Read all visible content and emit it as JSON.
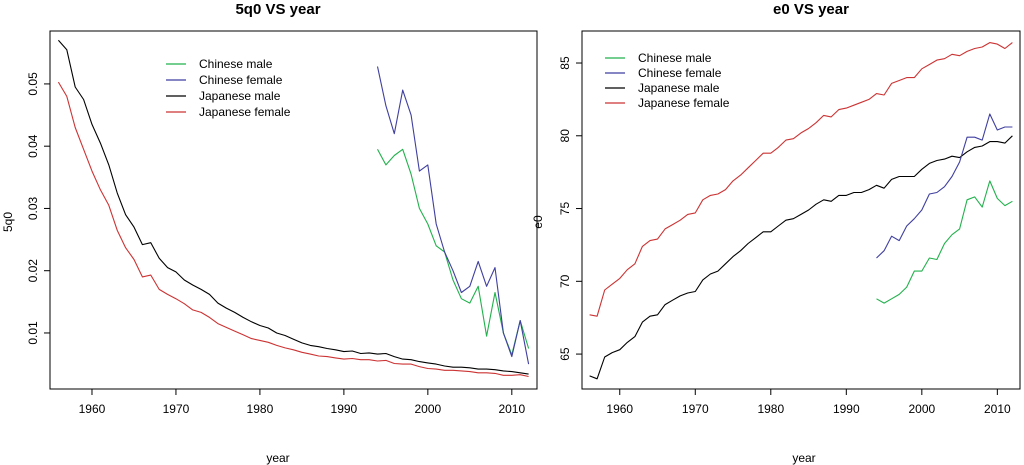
{
  "colors": {
    "chinese_male": "#22b14c",
    "chinese_female": "#3f3fa0",
    "japanese_male": "#000000",
    "japanese_female": "#cc3333"
  },
  "chart_data": [
    {
      "type": "line",
      "title": "5q0 VS year",
      "xlabel": "year",
      "ylabel": "5q0",
      "xlim": [
        1955,
        2013
      ],
      "ylim": [
        0.001,
        0.0585
      ],
      "xticks": [
        1960,
        1970,
        1980,
        1990,
        2000,
        2010
      ],
      "yticks": [
        0.01,
        0.02,
        0.03,
        0.04,
        0.05
      ],
      "xtick_labels": [
        "1960",
        "1970",
        "1980",
        "1990",
        "2000",
        "2010"
      ],
      "ytick_labels": [
        "0.01",
        "0.02",
        "0.03",
        "0.04",
        "0.05"
      ],
      "legend": {
        "position": "top-center",
        "entries": [
          "Chinese male",
          "Chinese female",
          "Japanese male",
          "Japanese female"
        ]
      },
      "series": [
        {
          "name": "Japanese male",
          "color_key": "japanese_male",
          "x": [
            1956,
            1957,
            1958,
            1959,
            1960,
            1961,
            1962,
            1963,
            1964,
            1965,
            1966,
            1967,
            1968,
            1969,
            1970,
            1971,
            1972,
            1973,
            1974,
            1975,
            1976,
            1977,
            1978,
            1979,
            1980,
            1981,
            1982,
            1983,
            1984,
            1985,
            1986,
            1987,
            1988,
            1989,
            1990,
            1991,
            1992,
            1993,
            1994,
            1995,
            1996,
            1997,
            1998,
            1999,
            2000,
            2001,
            2002,
            2003,
            2004,
            2005,
            2006,
            2007,
            2008,
            2009,
            2010,
            2011,
            2012
          ],
          "values": [
            0.057,
            0.0555,
            0.0495,
            0.0475,
            0.0435,
            0.0405,
            0.037,
            0.0325,
            0.029,
            0.027,
            0.0242,
            0.0245,
            0.022,
            0.0205,
            0.0198,
            0.0185,
            0.0177,
            0.017,
            0.0162,
            0.0148,
            0.014,
            0.0133,
            0.0125,
            0.0118,
            0.0112,
            0.0108,
            0.01,
            0.0096,
            0.009,
            0.0084,
            0.008,
            0.0078,
            0.0075,
            0.0073,
            0.007,
            0.0071,
            0.0067,
            0.0068,
            0.0066,
            0.0067,
            0.0062,
            0.0058,
            0.0057,
            0.0054,
            0.0052,
            0.005,
            0.0047,
            0.0045,
            0.0045,
            0.0044,
            0.0042,
            0.0042,
            0.0041,
            0.0039,
            0.0038,
            0.0036,
            0.0034
          ]
        },
        {
          "name": "Japanese female",
          "color_key": "japanese_female",
          "x": [
            1956,
            1957,
            1958,
            1959,
            1960,
            1961,
            1962,
            1963,
            1964,
            1965,
            1966,
            1967,
            1968,
            1969,
            1970,
            1971,
            1972,
            1973,
            1974,
            1975,
            1976,
            1977,
            1978,
            1979,
            1980,
            1981,
            1982,
            1983,
            1984,
            1985,
            1986,
            1987,
            1988,
            1989,
            1990,
            1991,
            1992,
            1993,
            1994,
            1995,
            1996,
            1997,
            1998,
            1999,
            2000,
            2001,
            2002,
            2003,
            2004,
            2005,
            2006,
            2007,
            2008,
            2009,
            2010,
            2011,
            2012
          ],
          "values": [
            0.0503,
            0.048,
            0.043,
            0.0395,
            0.036,
            0.033,
            0.0305,
            0.0265,
            0.0237,
            0.0218,
            0.019,
            0.0193,
            0.017,
            0.0162,
            0.0155,
            0.0147,
            0.0137,
            0.0133,
            0.0125,
            0.0115,
            0.0109,
            0.0103,
            0.0097,
            0.0091,
            0.0088,
            0.0085,
            0.008,
            0.0076,
            0.0073,
            0.0069,
            0.0066,
            0.0063,
            0.0062,
            0.006,
            0.0058,
            0.0059,
            0.0057,
            0.0057,
            0.0055,
            0.0056,
            0.0051,
            0.005,
            0.005,
            0.0046,
            0.0043,
            0.0042,
            0.004,
            0.004,
            0.0039,
            0.0038,
            0.0036,
            0.0036,
            0.0035,
            0.0032,
            0.0032,
            0.0033,
            0.003
          ]
        },
        {
          "name": "Chinese male",
          "color_key": "chinese_male",
          "x": [
            1994,
            1995,
            1996,
            1997,
            1998,
            1999,
            2000,
            2001,
            2002,
            2003,
            2004,
            2005,
            2006,
            2007,
            2008,
            2009,
            2010,
            2011,
            2012
          ],
          "values": [
            0.0395,
            0.037,
            0.0385,
            0.0395,
            0.0355,
            0.03,
            0.0275,
            0.024,
            0.023,
            0.0185,
            0.0155,
            0.0148,
            0.0175,
            0.0095,
            0.0165,
            0.01,
            0.0065,
            0.012,
            0.0075
          ]
        },
        {
          "name": "Chinese female",
          "color_key": "chinese_female",
          "x": [
            1994,
            1995,
            1996,
            1997,
            1998,
            1999,
            2000,
            2001,
            2002,
            2003,
            2004,
            2005,
            2006,
            2007,
            2008,
            2009,
            2010,
            2011,
            2012
          ],
          "values": [
            0.0528,
            0.0465,
            0.042,
            0.049,
            0.045,
            0.036,
            0.037,
            0.0275,
            0.023,
            0.02,
            0.0165,
            0.0175,
            0.0215,
            0.0175,
            0.0205,
            0.01,
            0.0062,
            0.012,
            0.005
          ]
        }
      ]
    },
    {
      "type": "line",
      "title": "e0 VS year",
      "xlabel": "year",
      "ylabel": "e0",
      "xlim": [
        1955,
        2013
      ],
      "ylim": [
        62.6,
        87.2
      ],
      "xticks": [
        1960,
        1970,
        1980,
        1990,
        2000,
        2010
      ],
      "yticks": [
        65,
        70,
        75,
        80,
        85
      ],
      "xtick_labels": [
        "1960",
        "1970",
        "1980",
        "1990",
        "2000",
        "2010"
      ],
      "ytick_labels": [
        "65",
        "70",
        "75",
        "80",
        "85"
      ],
      "legend": {
        "position": "top-left",
        "entries": [
          "Chinese male",
          "Chinese female",
          "Japanese male",
          "Japanese female"
        ]
      },
      "series": [
        {
          "name": "Japanese female",
          "color_key": "japanese_female",
          "x": [
            1956,
            1957,
            1958,
            1959,
            1960,
            1961,
            1962,
            1963,
            1964,
            1965,
            1966,
            1967,
            1968,
            1969,
            1970,
            1971,
            1972,
            1973,
            1974,
            1975,
            1976,
            1977,
            1978,
            1979,
            1980,
            1981,
            1982,
            1983,
            1984,
            1985,
            1986,
            1987,
            1988,
            1989,
            1990,
            1991,
            1992,
            1993,
            1994,
            1995,
            1996,
            1997,
            1998,
            1999,
            2000,
            2001,
            2002,
            2003,
            2004,
            2005,
            2006,
            2007,
            2008,
            2009,
            2010,
            2011,
            2012
          ],
          "values": [
            67.7,
            67.6,
            69.4,
            69.8,
            70.2,
            70.8,
            71.2,
            72.4,
            72.8,
            72.9,
            73.6,
            73.9,
            74.2,
            74.6,
            74.7,
            75.6,
            75.9,
            76.0,
            76.3,
            76.9,
            77.3,
            77.8,
            78.3,
            78.8,
            78.8,
            79.2,
            79.7,
            79.8,
            80.2,
            80.5,
            80.9,
            81.4,
            81.3,
            81.8,
            81.9,
            82.1,
            82.3,
            82.5,
            82.9,
            82.8,
            83.6,
            83.8,
            84.0,
            84.0,
            84.6,
            84.9,
            85.2,
            85.3,
            85.6,
            85.5,
            85.8,
            86.0,
            86.1,
            86.4,
            86.3,
            86.0,
            86.4
          ]
        },
        {
          "name": "Japanese male",
          "color_key": "japanese_male",
          "x": [
            1956,
            1957,
            1958,
            1959,
            1960,
            1961,
            1962,
            1963,
            1964,
            1965,
            1966,
            1967,
            1968,
            1969,
            1970,
            1971,
            1972,
            1973,
            1974,
            1975,
            1976,
            1977,
            1978,
            1979,
            1980,
            1981,
            1982,
            1983,
            1984,
            1985,
            1986,
            1987,
            1988,
            1989,
            1990,
            1991,
            1992,
            1993,
            1994,
            1995,
            1996,
            1997,
            1998,
            1999,
            2000,
            2001,
            2002,
            2003,
            2004,
            2005,
            2006,
            2007,
            2008,
            2009,
            2010,
            2011,
            2012
          ],
          "values": [
            63.5,
            63.3,
            64.8,
            65.1,
            65.3,
            65.8,
            66.2,
            67.2,
            67.6,
            67.7,
            68.4,
            68.7,
            69.0,
            69.2,
            69.3,
            70.1,
            70.5,
            70.7,
            71.2,
            71.7,
            72.1,
            72.6,
            73.0,
            73.4,
            73.4,
            73.8,
            74.2,
            74.3,
            74.6,
            74.9,
            75.3,
            75.6,
            75.5,
            75.9,
            75.9,
            76.1,
            76.1,
            76.3,
            76.6,
            76.4,
            77.0,
            77.2,
            77.2,
            77.2,
            77.7,
            78.1,
            78.3,
            78.4,
            78.6,
            78.5,
            78.9,
            79.2,
            79.3,
            79.6,
            79.6,
            79.5,
            80.0
          ]
        },
        {
          "name": "Chinese female",
          "color_key": "chinese_female",
          "x": [
            1994,
            1995,
            1996,
            1997,
            1998,
            1999,
            2000,
            2001,
            2002,
            2003,
            2004,
            2005,
            2006,
            2007,
            2008,
            2009,
            2010,
            2011,
            2012
          ],
          "values": [
            71.6,
            72.1,
            73.1,
            72.8,
            73.8,
            74.3,
            74.9,
            76.0,
            76.1,
            76.5,
            77.2,
            78.2,
            79.9,
            79.9,
            79.7,
            81.5,
            80.4,
            80.6,
            80.6
          ]
        },
        {
          "name": "Chinese male",
          "color_key": "chinese_male",
          "x": [
            1994,
            1995,
            1996,
            1997,
            1998,
            1999,
            2000,
            2001,
            2002,
            2003,
            2004,
            2005,
            2006,
            2007,
            2008,
            2009,
            2010,
            2011,
            2012
          ],
          "values": [
            68.8,
            68.5,
            68.8,
            69.1,
            69.6,
            70.7,
            70.7,
            71.6,
            71.5,
            72.6,
            73.2,
            73.6,
            75.6,
            75.8,
            75.1,
            76.9,
            75.7,
            75.2,
            75.5
          ]
        }
      ]
    }
  ]
}
